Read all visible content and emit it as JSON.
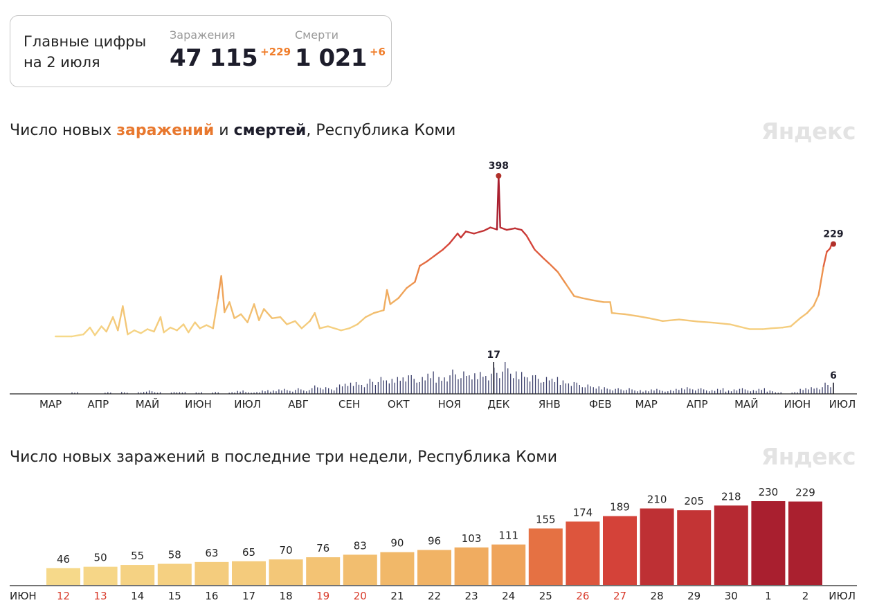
{
  "summary": {
    "title_line1": "Главные цифры",
    "title_line2": "на 2 июля",
    "infections": {
      "label": "Заражения",
      "value": "47 115",
      "delta": "+229"
    },
    "deaths": {
      "label": "Смерти",
      "value": "1 021",
      "delta": "+6"
    }
  },
  "brand": "Яндекс",
  "colors": {
    "infections_accent": "#e8782e",
    "deaths": "#3b3f6b",
    "peak_marker": "#b0302a",
    "weekend_label": "#d83a2a"
  },
  "chart_data": [
    {
      "type": "line",
      "title_parts": [
        "Число новых ",
        "заражений",
        " и ",
        "смертей",
        ", Республика Коми"
      ],
      "months": [
        "МАР",
        "АПР",
        "МАЙ",
        "ИЮН",
        "ИЮЛ",
        "АВГ",
        "СЕН",
        "ОКТ",
        "НОЯ",
        "ДЕК",
        "ЯНВ",
        "ФЕВ",
        "МАР",
        "АПР",
        "МАЙ",
        "ИЮН",
        "ИЮЛ"
      ],
      "infections_series": {
        "name": "заражений",
        "points": [
          [
            "2020-03-15",
            0
          ],
          [
            "2020-03-25",
            0
          ],
          [
            "2020-04-01",
            5
          ],
          [
            "2020-04-05",
            22
          ],
          [
            "2020-04-08",
            3
          ],
          [
            "2020-04-12",
            25
          ],
          [
            "2020-04-15",
            12
          ],
          [
            "2020-04-19",
            48
          ],
          [
            "2020-04-22",
            15
          ],
          [
            "2020-04-25",
            75
          ],
          [
            "2020-04-28",
            5
          ],
          [
            "2020-05-02",
            15
          ],
          [
            "2020-05-06",
            8
          ],
          [
            "2020-05-10",
            18
          ],
          [
            "2020-05-14",
            12
          ],
          [
            "2020-05-18",
            48
          ],
          [
            "2020-05-20",
            10
          ],
          [
            "2020-05-24",
            22
          ],
          [
            "2020-05-28",
            15
          ],
          [
            "2020-06-01",
            30
          ],
          [
            "2020-06-04",
            10
          ],
          [
            "2020-06-08",
            35
          ],
          [
            "2020-06-11",
            20
          ],
          [
            "2020-06-15",
            28
          ],
          [
            "2020-06-19",
            20
          ],
          [
            "2020-06-22",
            95
          ],
          [
            "2020-06-24",
            150
          ],
          [
            "2020-06-26",
            60
          ],
          [
            "2020-06-29",
            85
          ],
          [
            "2020-07-02",
            45
          ],
          [
            "2020-07-06",
            55
          ],
          [
            "2020-07-10",
            35
          ],
          [
            "2020-07-14",
            80
          ],
          [
            "2020-07-17",
            40
          ],
          [
            "2020-07-20",
            68
          ],
          [
            "2020-07-25",
            45
          ],
          [
            "2020-07-30",
            48
          ],
          [
            "2020-08-03",
            30
          ],
          [
            "2020-08-08",
            38
          ],
          [
            "2020-08-12",
            20
          ],
          [
            "2020-08-17",
            38
          ],
          [
            "2020-08-20",
            58
          ],
          [
            "2020-08-23",
            20
          ],
          [
            "2020-08-28",
            25
          ],
          [
            "2020-09-05",
            15
          ],
          [
            "2020-09-10",
            20
          ],
          [
            "2020-09-15",
            30
          ],
          [
            "2020-09-20",
            48
          ],
          [
            "2020-09-25",
            58
          ],
          [
            "2020-10-01",
            65
          ],
          [
            "2020-10-03",
            115
          ],
          [
            "2020-10-05",
            80
          ],
          [
            "2020-10-10",
            95
          ],
          [
            "2020-10-15",
            120
          ],
          [
            "2020-10-20",
            135
          ],
          [
            "2020-10-23",
            175
          ],
          [
            "2020-10-27",
            185
          ],
          [
            "2020-11-01",
            200
          ],
          [
            "2020-11-06",
            215
          ],
          [
            "2020-11-10",
            230
          ],
          [
            "2020-11-15",
            255
          ],
          [
            "2020-11-17",
            245
          ],
          [
            "2020-11-20",
            260
          ],
          [
            "2020-11-25",
            255
          ],
          [
            "2020-12-01",
            262
          ],
          [
            "2020-12-05",
            270
          ],
          [
            "2020-12-09",
            265
          ],
          [
            "2020-12-10",
            398
          ],
          [
            "2020-12-11",
            270
          ],
          [
            "2020-12-15",
            264
          ],
          [
            "2020-12-20",
            268
          ],
          [
            "2020-12-24",
            264
          ],
          [
            "2020-12-27",
            250
          ],
          [
            "2021-01-01",
            215
          ],
          [
            "2021-01-06",
            195
          ],
          [
            "2021-01-10",
            180
          ],
          [
            "2021-01-15",
            160
          ],
          [
            "2021-01-20",
            130
          ],
          [
            "2021-01-25",
            100
          ],
          [
            "2021-01-30",
            95
          ],
          [
            "2021-02-05",
            90
          ],
          [
            "2021-02-12",
            85
          ],
          [
            "2021-02-16",
            85
          ],
          [
            "2021-02-17",
            58
          ],
          [
            "2021-02-25",
            55
          ],
          [
            "2021-03-05",
            50
          ],
          [
            "2021-03-12",
            45
          ],
          [
            "2021-03-20",
            38
          ],
          [
            "2021-03-30",
            42
          ],
          [
            "2021-04-10",
            37
          ],
          [
            "2021-04-20",
            34
          ],
          [
            "2021-04-30",
            30
          ],
          [
            "2021-05-05",
            25
          ],
          [
            "2021-05-12",
            18
          ],
          [
            "2021-05-20",
            18
          ],
          [
            "2021-05-25",
            20
          ],
          [
            "2021-06-01",
            22
          ],
          [
            "2021-06-06",
            25
          ],
          [
            "2021-06-12",
            46
          ],
          [
            "2021-06-16",
            58
          ],
          [
            "2021-06-20",
            76
          ],
          [
            "2021-06-23",
            103
          ],
          [
            "2021-06-26",
            174
          ],
          [
            "2021-06-28",
            210
          ],
          [
            "2021-06-30",
            218
          ],
          [
            "2021-07-01",
            230
          ],
          [
            "2021-07-02",
            229
          ]
        ]
      },
      "deaths_series": {
        "name": "смертей",
        "values_by_week": [
          0,
          1,
          0,
          0,
          0,
          1,
          0,
          1,
          0,
          1,
          2,
          1,
          0,
          1,
          1,
          0,
          1,
          0,
          1,
          0,
          1,
          2,
          1,
          1,
          2,
          2,
          3,
          2,
          3,
          2,
          5,
          4,
          3,
          5,
          6,
          7,
          6,
          8,
          9,
          8,
          10,
          11,
          10,
          9,
          12,
          10,
          11,
          13,
          12,
          11,
          13,
          12,
          14,
          17,
          12,
          13,
          11,
          10,
          9,
          9,
          8,
          7,
          6,
          5,
          4,
          4,
          3,
          3,
          3,
          2,
          2,
          3,
          2,
          2,
          3,
          4,
          3,
          3,
          2,
          3,
          2,
          3,
          3,
          2,
          3,
          2,
          1,
          0,
          1,
          3,
          4,
          4,
          6
        ],
        "start": "2020-03-20",
        "end": "2021-07-02"
      },
      "peak_labels": [
        {
          "text": "398",
          "date": "2020-12-10",
          "value": 398
        },
        {
          "text": "229",
          "date": "2021-07-02",
          "value": 229
        }
      ],
      "death_peak_labels": [
        {
          "text": "17",
          "date": "2020-12-07"
        },
        {
          "text": "6",
          "date": "2021-07-02"
        }
      ],
      "ylim": [
        0,
        400
      ]
    },
    {
      "type": "bar",
      "title": "Число новых заражений в последние три недели, Республика Коми",
      "x_start_label": "ИЮН",
      "x_end_label": "ИЮЛ",
      "categories": [
        "12",
        "13",
        "14",
        "15",
        "16",
        "17",
        "18",
        "19",
        "20",
        "21",
        "22",
        "23",
        "24",
        "25",
        "26",
        "27",
        "28",
        "29",
        "30",
        "1",
        "2"
      ],
      "values": [
        46,
        50,
        55,
        58,
        63,
        65,
        70,
        76,
        83,
        90,
        96,
        103,
        111,
        155,
        174,
        189,
        210,
        205,
        218,
        230,
        229
      ],
      "weekend": [
        true,
        true,
        false,
        false,
        false,
        false,
        false,
        true,
        true,
        false,
        false,
        false,
        false,
        false,
        true,
        true,
        false,
        false,
        false,
        false,
        false
      ],
      "ylim": [
        0,
        240
      ]
    }
  ]
}
